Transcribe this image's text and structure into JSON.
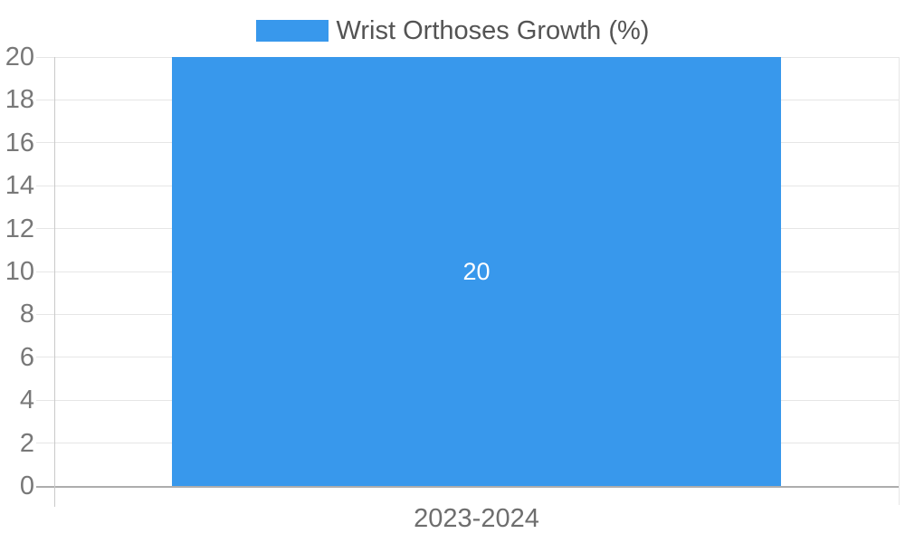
{
  "legend": {
    "label": "Wrist Orthoses Growth (%)"
  },
  "bar": {
    "value_label": "20"
  },
  "x_axis": {
    "category_label": "2023-2024"
  },
  "colors": {
    "background": "#ffffff",
    "bar": "#3898ec",
    "data_label": "#ffffff",
    "legend_text": "#545454",
    "tick_text": "#787878",
    "x_label_text": "#6e6e6e",
    "gridline": "#e6e6e6",
    "baseline": "#adadad",
    "axis_line": "#c9c9c9"
  },
  "chart_data": {
    "type": "bar",
    "title": "",
    "categories": [
      "2023-2024"
    ],
    "series": [
      {
        "name": "Wrist Orthoses Growth (%)",
        "values": [
          20
        ]
      }
    ],
    "data_labels": [
      20
    ],
    "xlabel": "",
    "ylabel": "",
    "ylim": [
      0,
      20
    ],
    "yticks": [
      0,
      2,
      4,
      6,
      8,
      10,
      12,
      14,
      16,
      18,
      20
    ],
    "grid": true,
    "legend_position": "top",
    "bar_width_fraction": 0.721
  }
}
